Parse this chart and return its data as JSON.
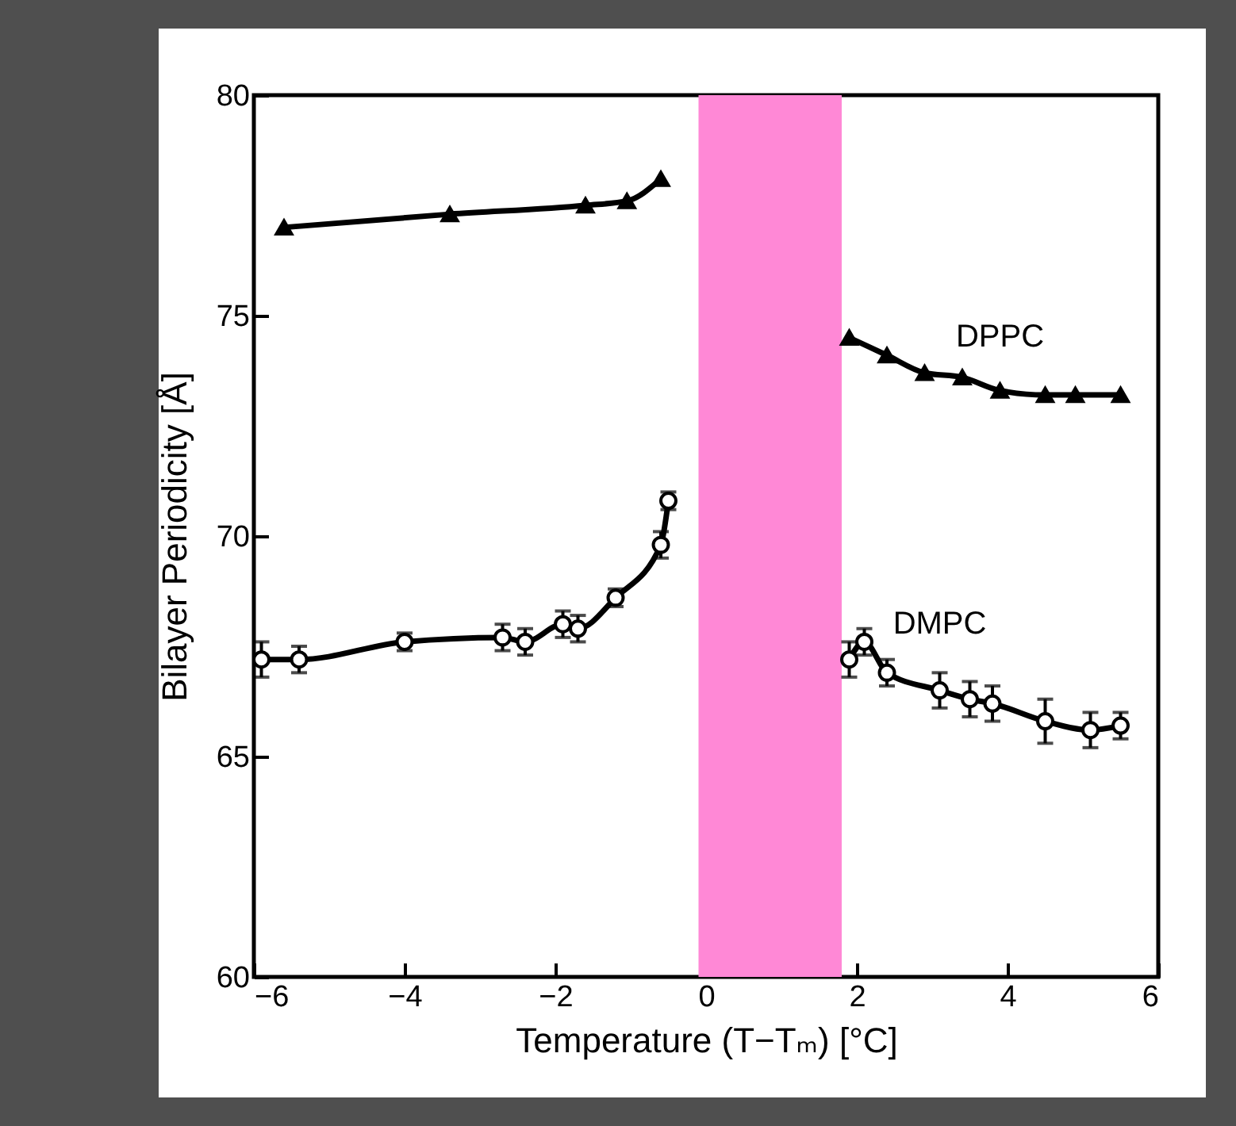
{
  "chart_data": {
    "type": "line",
    "xlabel": "Temperature (T−Tₘ) [°C]",
    "ylabel": "Bilayer Periodicity [Å]",
    "xlim": [
      -6,
      6
    ],
    "xticks": [
      -6,
      -4,
      -2,
      0,
      2,
      4,
      6
    ],
    "ylim": [
      60,
      80
    ],
    "yticks": [
      60,
      65,
      70,
      75,
      80
    ],
    "grid": false,
    "bands": [
      {
        "axis": "x",
        "from": -0.1,
        "to": 1.8,
        "color": "#ff88d6"
      }
    ],
    "series": [
      {
        "name": "DPPC",
        "color": "#000000",
        "marker": "triangle",
        "x": [
          -5.6,
          -3.4,
          -1.6,
          -1.05,
          -0.6,
          null,
          1.9,
          2.4,
          2.9,
          3.4,
          3.9,
          4.5,
          4.9,
          5.5
        ],
        "values": [
          77.0,
          77.3,
          77.5,
          77.6,
          78.1,
          null,
          74.5,
          74.1,
          73.7,
          73.6,
          73.3,
          73.2,
          73.2,
          73.2
        ]
      },
      {
        "name": "DMPC",
        "color": "#000000",
        "marker": "circle",
        "x": [
          -5.9,
          -5.4,
          -4.0,
          -2.7,
          -2.4,
          -1.9,
          -1.7,
          -1.2,
          -0.6,
          -0.5,
          null,
          1.9,
          2.1,
          2.4,
          3.1,
          3.5,
          3.8,
          4.5,
          5.1,
          5.5
        ],
        "values": [
          67.2,
          67.2,
          67.6,
          67.7,
          67.6,
          68.0,
          67.9,
          68.6,
          69.8,
          70.8,
          null,
          67.2,
          67.6,
          66.9,
          66.5,
          66.3,
          66.2,
          65.8,
          65.6,
          65.7
        ],
        "errors": [
          0.4,
          0.3,
          0.2,
          0.3,
          0.3,
          0.3,
          0.3,
          0.2,
          0.3,
          0.2,
          null,
          0.4,
          0.3,
          0.3,
          0.4,
          0.4,
          0.4,
          0.5,
          0.4,
          0.3
        ]
      }
    ]
  }
}
